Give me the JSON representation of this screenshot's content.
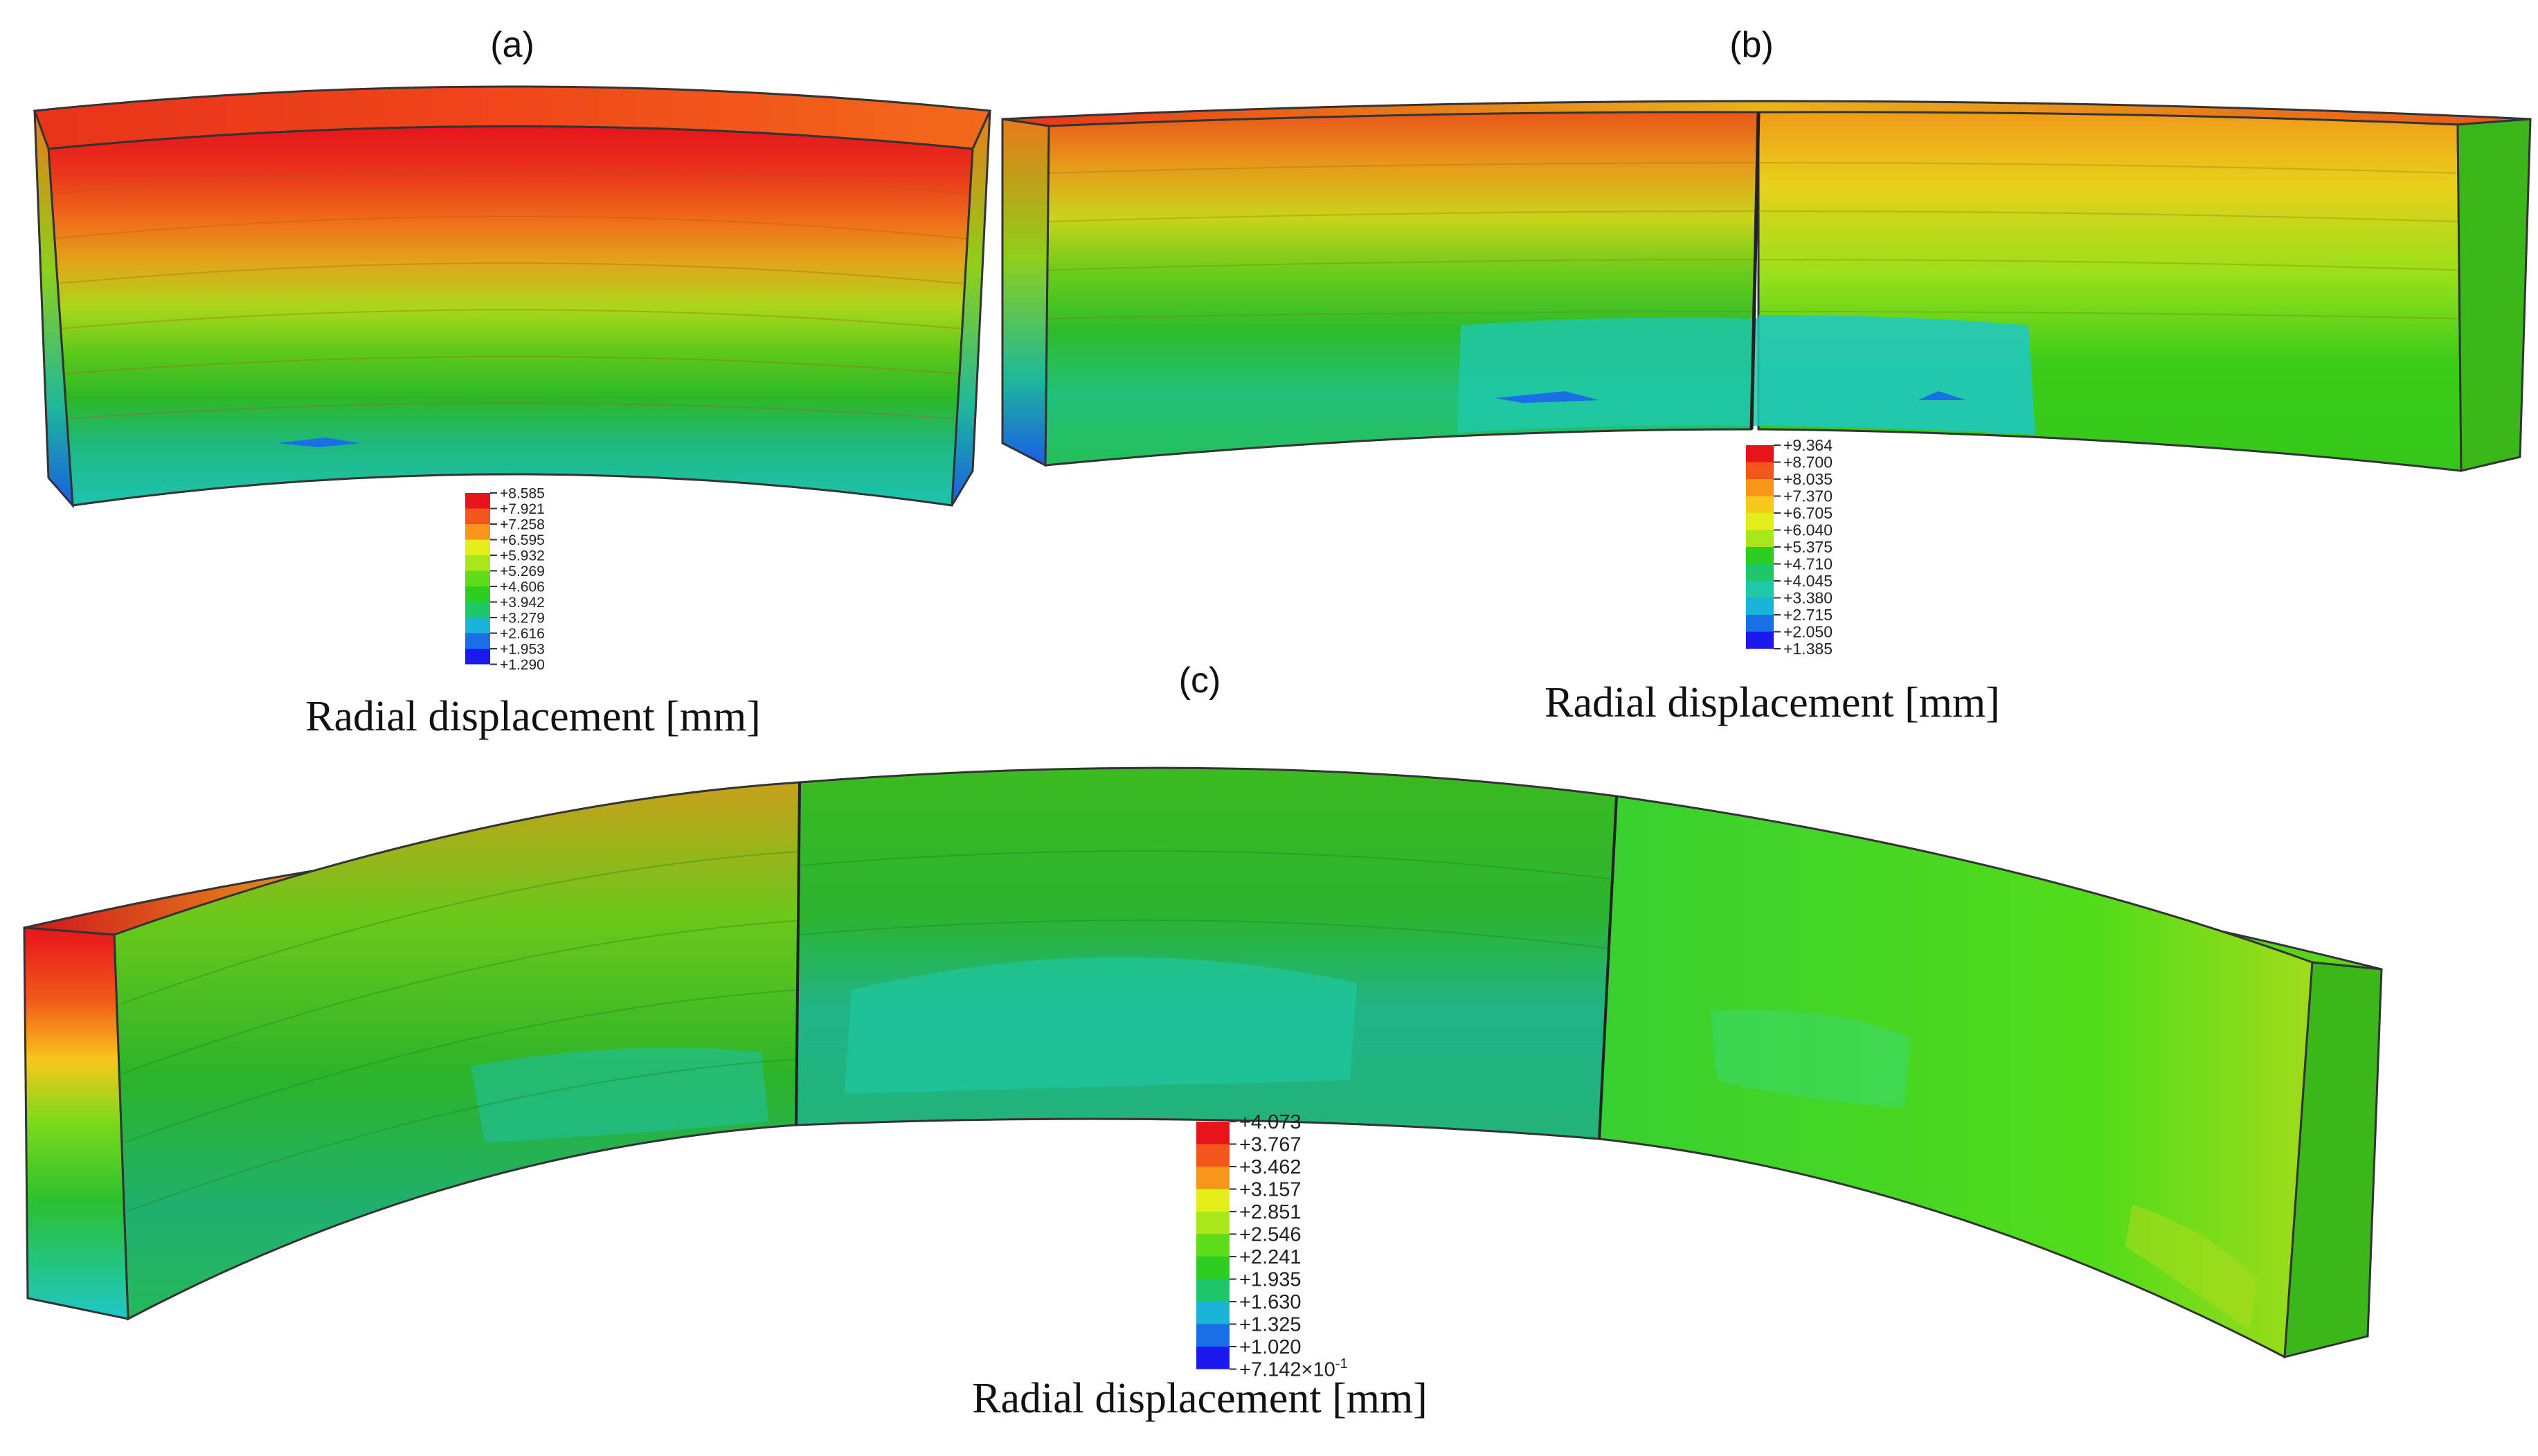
{
  "panels": [
    {
      "label": "(a)",
      "caption": "Radial displacement [mm]",
      "legend": {
        "values": [
          "+8.585",
          "+7.921",
          "+7.258",
          "+6.595",
          "+5.932",
          "+5.269",
          "+4.606",
          "+3.942",
          "+3.279",
          "+2.616",
          "+1.953",
          "+1.290"
        ]
      }
    },
    {
      "label": "(b)",
      "caption": "Radial displacement [mm]",
      "legend": {
        "values": [
          "+9.364",
          "+8.700",
          "+8.035",
          "+7.370",
          "+6.705",
          "+6.040",
          "+5.375",
          "+4.710",
          "+4.045",
          "+3.380",
          "+2.715",
          "+2.050",
          "+1.385"
        ]
      }
    },
    {
      "label": "(c)",
      "caption": "Radial displacement [mm]",
      "legend": {
        "values": [
          "+4.073",
          "+3.767",
          "+3.462",
          "+3.157",
          "+2.851",
          "+2.546",
          "+2.241",
          "+1.935",
          "+1.630",
          "+1.325",
          "+1.020"
        ],
        "last_value_mantissa": "+7.142",
        "last_value_times": "×10",
        "last_value_exponent": "-1"
      }
    }
  ],
  "colors": {
    "scale": [
      "#e8141c",
      "#f2561a",
      "#f8961a",
      "#f6c81a",
      "#e6ee1a",
      "#a8e81a",
      "#5cdc1a",
      "#2ccd20",
      "#1ec86a",
      "#1ec8a8",
      "#1ab4d8",
      "#1a6ee6",
      "#1a1aee"
    ]
  }
}
